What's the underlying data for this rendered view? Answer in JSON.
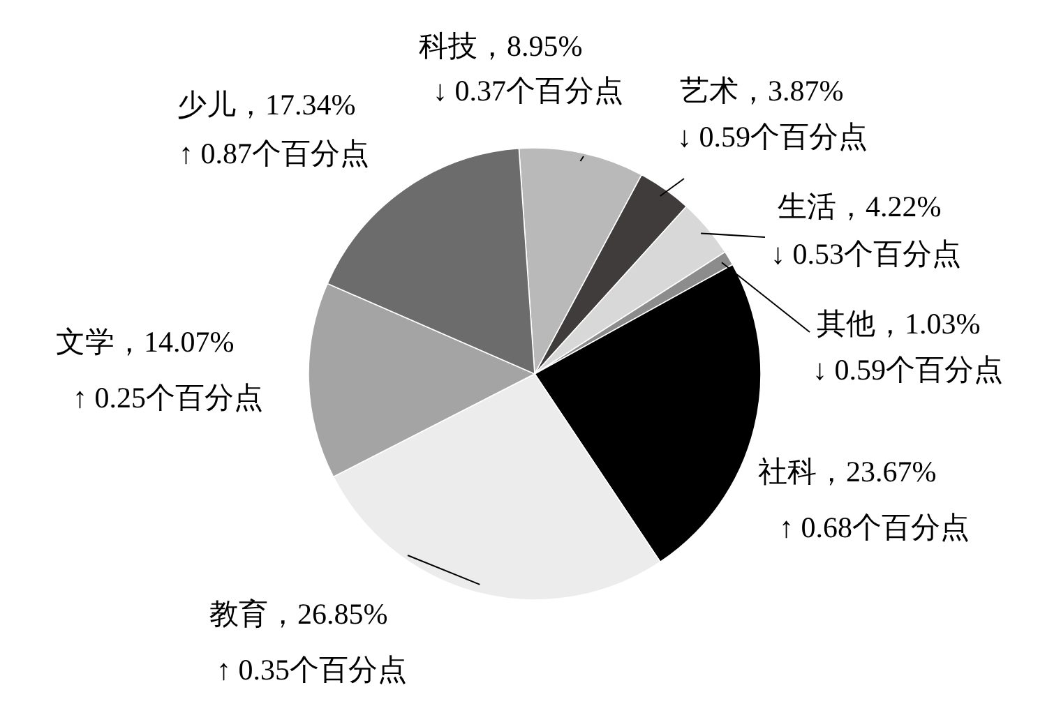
{
  "chart_data": {
    "type": "pie",
    "categories": [
      "科技",
      "艺术",
      "生活",
      "其他",
      "社科",
      "教育",
      "文学",
      "少儿"
    ],
    "values": [
      8.95,
      3.87,
      4.22,
      1.03,
      23.67,
      26.85,
      14.07,
      17.34
    ],
    "colors": [
      "#b9b9b9",
      "#403c3c",
      "#d8d8d8",
      "#8c8c8c",
      "#000000",
      "#ececec",
      "#a4a4a4",
      "#6c6c6c"
    ],
    "value_labels": [
      "，8.95%",
      "，3.87%",
      "，4.22%",
      "，1.03%",
      "，23.67%",
      "，26.85%",
      "，14.07%",
      "，17.34%"
    ],
    "annotations": [
      {
        "text": "↓ 0.37个百分点",
        "x": "科技"
      },
      {
        "text": "↓ 0.59个百分点",
        "x": "艺术"
      },
      {
        "text": "↓ 0.53个百分点",
        "x": "生活"
      },
      {
        "text": "↓ 0.59个百分点",
        "x": "其他"
      },
      {
        "text": "↑ 0.68个百分点",
        "x": "社科"
      },
      {
        "text": "↑ 0.35个百分点",
        "x": "教育"
      },
      {
        "text": "↑ 0.25个百分点",
        "x": "文学"
      },
      {
        "text": "↑ 0.87个百分点",
        "x": "少儿"
      }
    ]
  }
}
